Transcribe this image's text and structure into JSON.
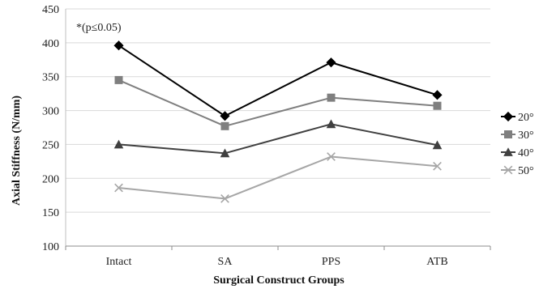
{
  "chart_data": {
    "type": "line",
    "title": "",
    "xlabel": "Surgical Construct Groups",
    "ylabel": "Axial Stiffness (N/mm)",
    "ylim": [
      100,
      450
    ],
    "yticks": [
      100,
      150,
      200,
      250,
      300,
      350,
      400,
      450
    ],
    "ytick_labels": [
      "100",
      "150",
      "200",
      "250",
      "300",
      "350",
      "400",
      "450"
    ],
    "categories": [
      "Intact",
      "SA",
      "PPS",
      "ATB"
    ],
    "grid": "horizontal",
    "legend_position": "right",
    "annotation": "*(p≤0.05)",
    "series": [
      {
        "name": "20°",
        "values": [
          396,
          292,
          371,
          323
        ],
        "color": "#000000",
        "marker": "diamond"
      },
      {
        "name": "30°",
        "values": [
          345,
          277,
          319,
          307
        ],
        "color": "#7f7f7f",
        "marker": "square"
      },
      {
        "name": "40°",
        "values": [
          250,
          237,
          280,
          249
        ],
        "color": "#404040",
        "marker": "triangle"
      },
      {
        "name": "50°",
        "values": [
          186,
          170,
          232,
          218
        ],
        "color": "#a6a6a6",
        "marker": "x"
      }
    ]
  }
}
